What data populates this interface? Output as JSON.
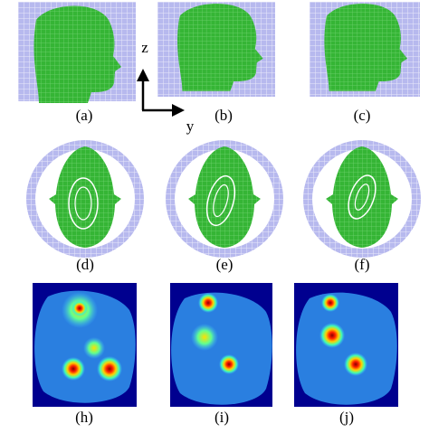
{
  "rows": [
    {
      "panels": [
        {
          "label": "(a)"
        },
        {
          "label": "(b)"
        },
        {
          "label": "(c)"
        }
      ]
    },
    {
      "panels": [
        {
          "label": "(d)"
        },
        {
          "label": "(e)"
        },
        {
          "label": "(f)"
        }
      ]
    },
    {
      "panels": [
        {
          "label": "(h)"
        },
        {
          "label": "(i)"
        },
        {
          "label": "(j)"
        }
      ]
    }
  ],
  "axes": {
    "vertical": "z",
    "horizontal": "y"
  }
}
